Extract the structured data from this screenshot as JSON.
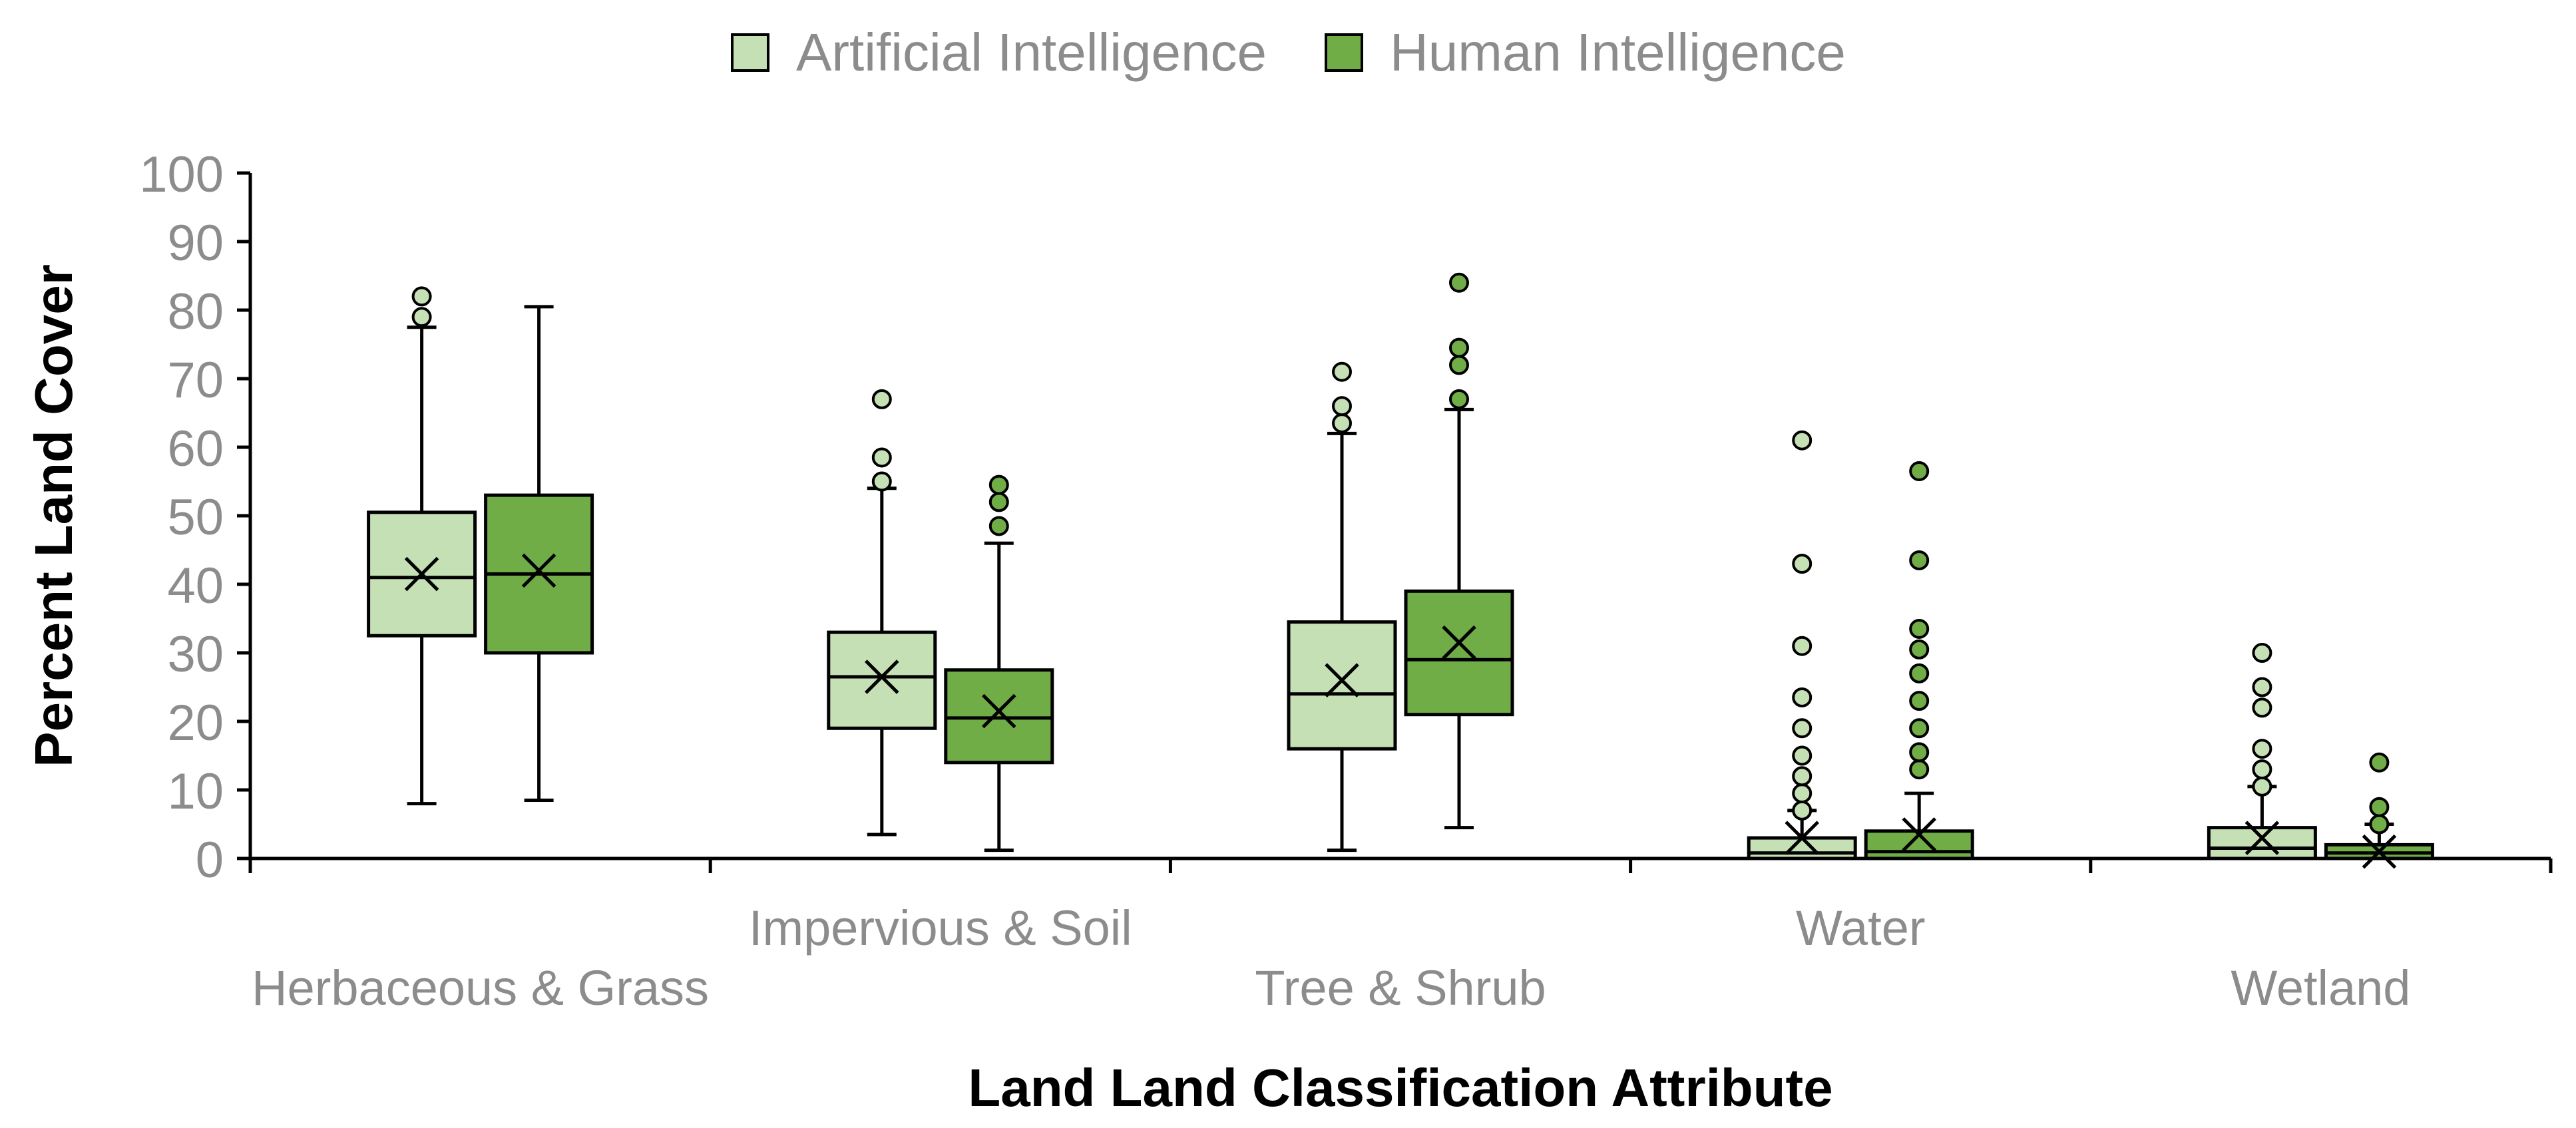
{
  "chart_data": {
    "type": "box",
    "xlabel": "Land Land Classification Attribute",
    "ylabel": "Percent Land Cover",
    "ylim": [
      0,
      100
    ],
    "yticks": [
      0,
      10,
      20,
      30,
      40,
      50,
      60,
      70,
      80,
      90,
      100
    ],
    "categories": [
      "Herbaceous & Grass",
      "Impervious & Soil",
      "Tree & Shrub",
      "Water",
      "Wetland"
    ],
    "legend_position": "top-center",
    "series": [
      {
        "name": "Artificial Intelligence",
        "color": "#c5e0b4",
        "boxes": [
          {
            "category": "Herbaceous & Grass",
            "whisker_low": 8,
            "q1": 32.5,
            "median": 41,
            "q3": 50.5,
            "whisker_high": 77.5,
            "mean": 41.5,
            "outliers": [
              79,
              82
            ]
          },
          {
            "category": "Impervious & Soil",
            "whisker_low": 3.5,
            "q1": 19,
            "median": 26.5,
            "q3": 33,
            "whisker_high": 54,
            "mean": 26.5,
            "outliers": [
              55,
              58.5,
              67
            ]
          },
          {
            "category": "Tree & Shrub",
            "whisker_low": 1.2,
            "q1": 16,
            "median": 24,
            "q3": 34.5,
            "whisker_high": 62,
            "mean": 26,
            "outliers": [
              63.5,
              66,
              71
            ]
          },
          {
            "category": "Water",
            "whisker_low": 0,
            "q1": 0,
            "median": 0.8,
            "q3": 3,
            "whisker_high": 7,
            "mean": 3,
            "outliers": [
              7,
              9.5,
              12,
              15,
              19,
              23.5,
              31,
              43,
              61
            ]
          },
          {
            "category": "Wetland",
            "whisker_low": 0,
            "q1": 0,
            "median": 1.5,
            "q3": 4.5,
            "whisker_high": 10.5,
            "mean": 3,
            "outliers": [
              10.5,
              13,
              16,
              22,
              25,
              30
            ]
          }
        ]
      },
      {
        "name": "Human Intelligence",
        "color": "#70ad47",
        "boxes": [
          {
            "category": "Herbaceous & Grass",
            "whisker_low": 8.5,
            "q1": 30,
            "median": 41.5,
            "q3": 53,
            "whisker_high": 80.5,
            "mean": 42,
            "outliers": []
          },
          {
            "category": "Impervious & Soil",
            "whisker_low": 1.2,
            "q1": 14,
            "median": 20.5,
            "q3": 27.5,
            "whisker_high": 46,
            "mean": 21.5,
            "outliers": [
              48.5,
              52,
              54.5
            ]
          },
          {
            "category": "Tree & Shrub",
            "whisker_low": 4.5,
            "q1": 21,
            "median": 29,
            "q3": 39,
            "whisker_high": 65.5,
            "mean": 31.5,
            "outliers": [
              67,
              72,
              74.5,
              84
            ]
          },
          {
            "category": "Water",
            "whisker_low": 0,
            "q1": 0,
            "median": 1,
            "q3": 4,
            "whisker_high": 9.5,
            "mean": 3.5,
            "outliers": [
              13,
              15.5,
              19,
              23,
              27,
              30.5,
              33.5,
              43.5,
              56.5
            ]
          },
          {
            "category": "Wetland",
            "whisker_low": 0,
            "q1": 0,
            "median": 0.8,
            "q3": 2,
            "whisker_high": 5,
            "mean": 1,
            "outliers": [
              5,
              7.5,
              14
            ]
          }
        ]
      }
    ]
  }
}
